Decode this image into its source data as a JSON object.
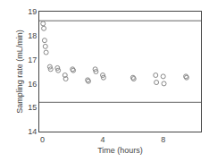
{
  "chart_data": {
    "type": "scatter",
    "xlabel": "Time (hours)",
    "ylabel": "Sampling rate (mL/min)",
    "x": [
      0.05,
      0.1,
      0.15,
      0.2,
      0.25,
      0.5,
      0.55,
      1.0,
      1.05,
      1.5,
      1.55,
      2.0,
      2.05,
      3.0,
      3.05,
      3.5,
      3.55,
      4.0,
      4.05,
      6.0,
      6.05,
      7.5,
      7.55,
      8.0,
      8.05,
      9.5,
      9.55
    ],
    "values": [
      18.5,
      18.3,
      17.8,
      17.55,
      17.3,
      16.7,
      16.6,
      16.65,
      16.55,
      16.35,
      16.2,
      16.6,
      16.55,
      16.15,
      16.1,
      16.6,
      16.5,
      16.35,
      16.25,
      16.25,
      16.2,
      16.35,
      16.05,
      16.3,
      16.0,
      16.3,
      16.25
    ],
    "color": "#888888",
    "marker": "open circle",
    "hlines": [
      {
        "value": 18.62,
        "color": "#666666"
      },
      {
        "value": 15.22,
        "color": "#666666"
      }
    ],
    "xlim": [
      -0.2,
      10.5
    ],
    "ylim": [
      14,
      19
    ],
    "xticks": [
      0,
      4,
      8
    ],
    "yticks": [
      14,
      15,
      16,
      17,
      18,
      19
    ],
    "grid": false
  }
}
